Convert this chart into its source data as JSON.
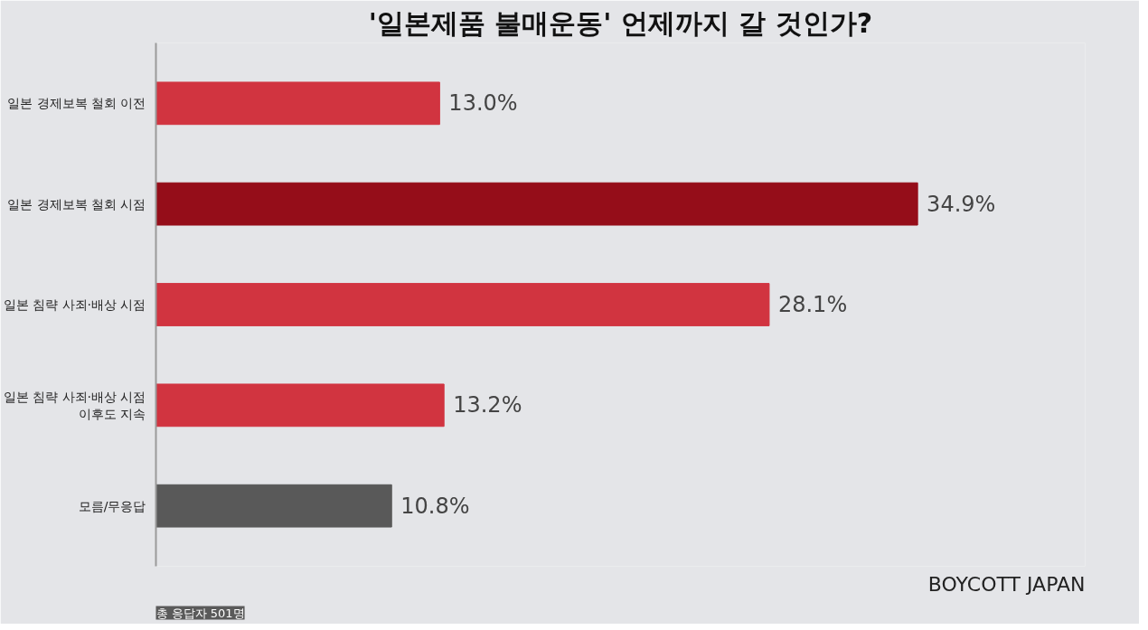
{
  "chart_data": {
    "type": "bar",
    "orientation": "horizontal",
    "title": "'일본제품 불매운동' 언제까지 갈 것인가?",
    "categories": [
      "일본 경제보복 철회 이전",
      "일본 경제보복 철회 시점",
      "일본 침략 사죄·배상 시점",
      "일본 침략 사죄·배상 시점\n이후도 지속",
      "모름/무응답"
    ],
    "values": [
      13.0,
      34.9,
      28.1,
      13.2,
      10.8
    ],
    "value_labels": [
      "13.0%",
      "34.9%",
      "28.1%",
      "13.2%",
      "10.8%"
    ],
    "colors": [
      "#d13440",
      "#950d19",
      "#d13440",
      "#d13440",
      "#595959"
    ],
    "annotations": [
      "BOYCOTT JAPAN",
      "총 응답자 501명"
    ]
  }
}
